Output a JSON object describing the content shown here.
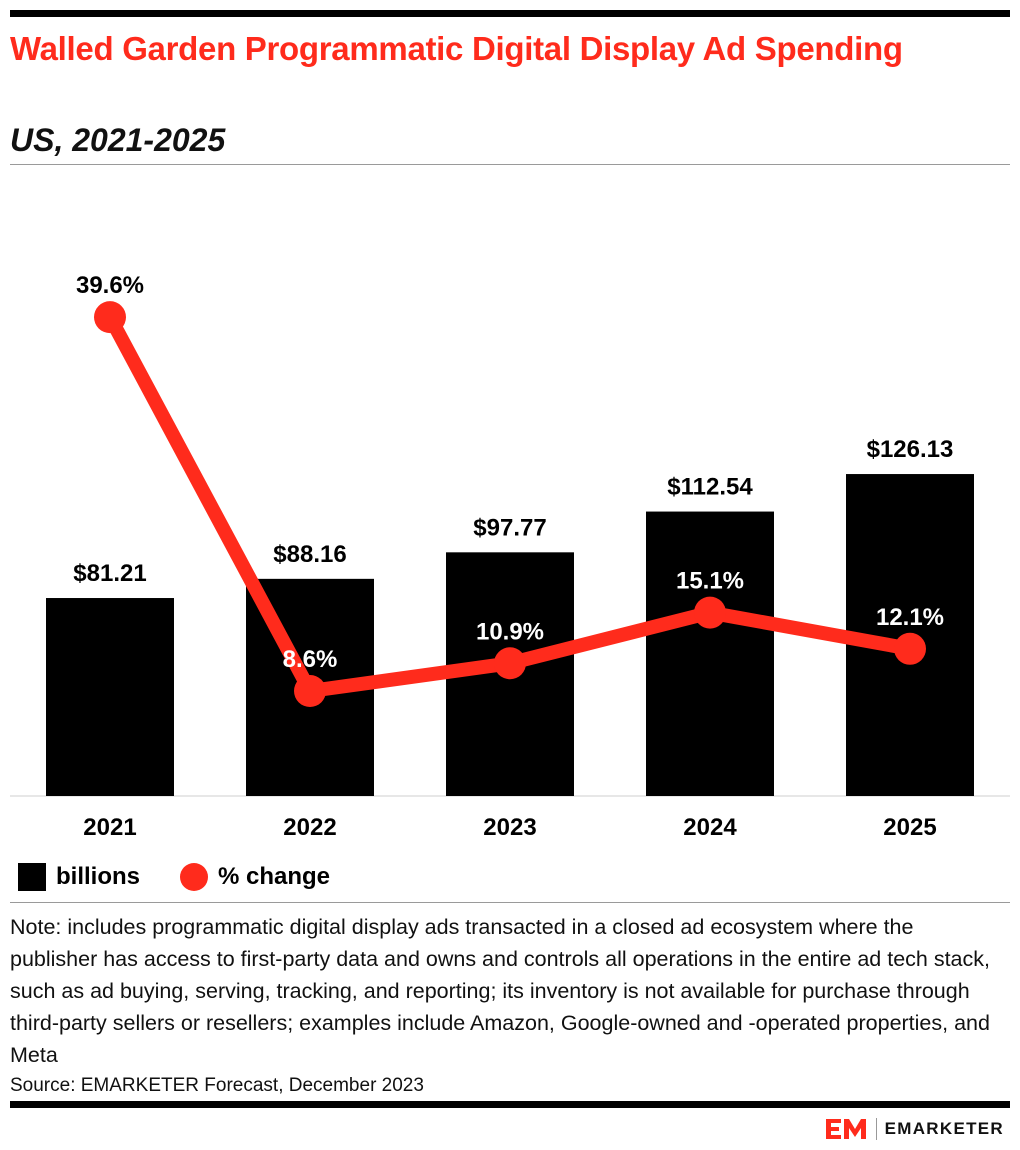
{
  "header": {
    "title": "Walled Garden Programmatic Digital Display Ad Spending",
    "subtitle": "US, 2021-2025"
  },
  "chart_data": {
    "type": "bar",
    "categories": [
      "2021",
      "2022",
      "2023",
      "2024",
      "2025"
    ],
    "series": [
      {
        "name": "billions",
        "type": "bar",
        "values": [
          81.21,
          88.16,
          97.77,
          112.54,
          126.13
        ],
        "labels": [
          "$81.21",
          "$88.16",
          "$97.77",
          "$112.54",
          "$126.13"
        ],
        "color": "#000000"
      },
      {
        "name": "% change",
        "type": "line",
        "values": [
          39.6,
          8.6,
          10.9,
          15.1,
          12.1
        ],
        "labels": [
          "39.6%",
          "8.6%",
          "10.9%",
          "15.1%",
          "12.1%"
        ],
        "color": "#ff2b1c"
      }
    ],
    "legend_position": "bottom-left",
    "grid": false
  },
  "legend": {
    "bars_label": "billions",
    "line_label": "% change"
  },
  "footer": {
    "note": "Note: includes programmatic digital display ads transacted in a closed ad ecosystem where the publisher has access to first-party data and owns and controls all operations in the entire ad tech stack, such as ad buying, serving, tracking, and reporting; its inventory is not available for purchase through third-party sellers or resellers; examples include Amazon, Google-owned and -operated properties, and Meta",
    "source": "Source: EMARKETER Forecast, December 2023",
    "brand": "EMARKETER"
  },
  "colors": {
    "accent": "#ff2b1c",
    "bar": "#000000"
  }
}
